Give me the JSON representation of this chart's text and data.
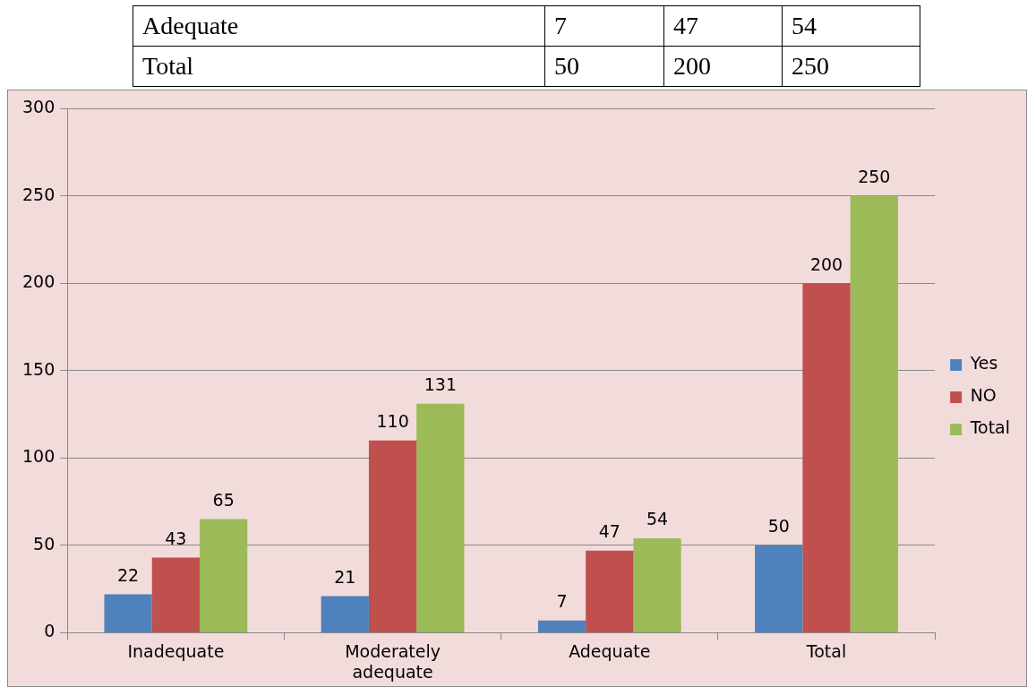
{
  "chart_data": {
    "type": "bar",
    "categories": [
      "Inadequate",
      "Moderately adequate",
      "Adequate",
      "Total"
    ],
    "series": [
      {
        "name": "Yes",
        "color": "#4f81bd",
        "values": [
          22,
          21,
          7,
          50
        ]
      },
      {
        "name": "NO",
        "color": "#c0504d",
        "values": [
          43,
          110,
          47,
          200
        ]
      },
      {
        "name": "Total",
        "color": "#9bbb59",
        "values": [
          65,
          131,
          54,
          250
        ]
      }
    ],
    "annotations": [
      "Adequate",
      "7",
      "47",
      "54",
      "Total",
      "50",
      "200",
      "250"
    ],
    "ylim": [
      0,
      300
    ],
    "yticks": [
      0,
      50,
      100,
      150,
      200,
      250,
      300
    ],
    "grid": "y",
    "legend": "right",
    "data_labels": true
  }
}
